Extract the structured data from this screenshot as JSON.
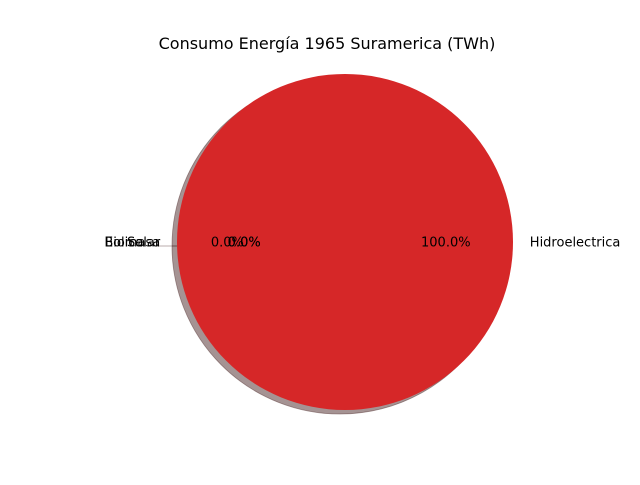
{
  "chart_data": {
    "type": "pie",
    "title": "Consumo Energía 1965 Suramerica (TWh)",
    "labels": [
      "Eolica",
      "Biomasa",
      "Solar",
      "Hidroelectrica"
    ],
    "values": [
      0.0,
      0.0,
      0.0,
      100.0
    ],
    "percent_labels": [
      "0.0%",
      "0.0%",
      "0.0%",
      "100.0%"
    ],
    "colors": [
      "#1f77b4",
      "#ff7f0e",
      "#2ca02c",
      "#d62728"
    ],
    "shadow": true,
    "start_angle": 180,
    "explode_first": true
  }
}
